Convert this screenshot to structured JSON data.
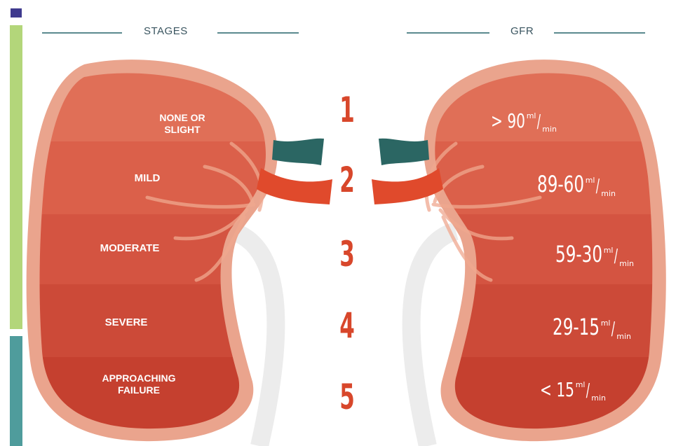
{
  "headers": {
    "stages": "STAGES",
    "gfr": "GFR"
  },
  "stages": [
    {
      "number": "1",
      "name": "NONE OR\nSLIGHT",
      "gfr_value": "> 90"
    },
    {
      "number": "2",
      "name": "MILD",
      "gfr_value": "89-60"
    },
    {
      "number": "3",
      "name": "MODERATE",
      "gfr_value": "59-30"
    },
    {
      "number": "4",
      "name": "SEVERE",
      "gfr_value": "29-15"
    },
    {
      "number": "5",
      "name": "APPROACHING\nFAILURE",
      "gfr_value": "< 15"
    }
  ],
  "unit": {
    "numerator": "ml",
    "denominator": "min"
  },
  "colors": {
    "kidney_outer": "#eaa48d",
    "kidney_bands": [
      "#e06f57",
      "#db604a",
      "#d45441",
      "#cc4a38",
      "#c5402f"
    ],
    "vein": "#2b6663",
    "artery": "#e04a2c",
    "stage_number": "#d8472b",
    "side_green": "#b3d67a",
    "side_teal": "#4f9c9c",
    "square": "#3f3a8e"
  }
}
